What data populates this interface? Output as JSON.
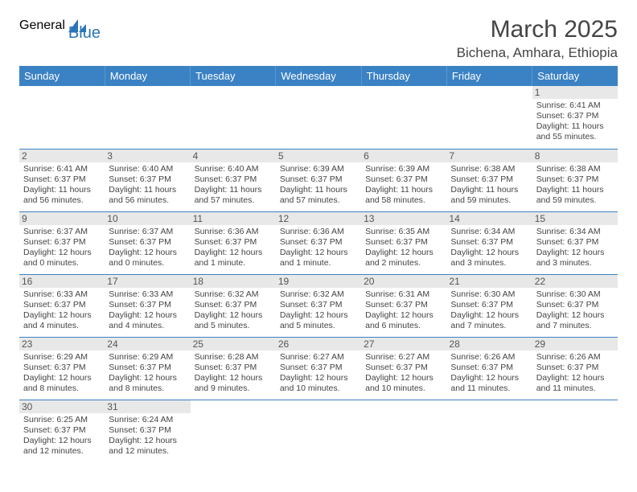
{
  "logo": {
    "part1": "General",
    "part2": "Blue",
    "color1": "#555555",
    "color2": "#2b74b8"
  },
  "title": "March 2025",
  "location": "Bichena, Amhara, Ethiopia",
  "header_bg": "#3b82c4",
  "divider_color": "#3b82c4",
  "daynum_bg": "#e8e8e8",
  "weekdays": [
    "Sunday",
    "Monday",
    "Tuesday",
    "Wednesday",
    "Thursday",
    "Friday",
    "Saturday"
  ],
  "cells": [
    [
      null,
      null,
      null,
      null,
      null,
      null,
      {
        "n": "1",
        "sr": "Sunrise: 6:41 AM",
        "ss": "Sunset: 6:37 PM",
        "dl": "Daylight: 11 hours and 55 minutes."
      }
    ],
    [
      {
        "n": "2",
        "sr": "Sunrise: 6:41 AM",
        "ss": "Sunset: 6:37 PM",
        "dl": "Daylight: 11 hours and 56 minutes."
      },
      {
        "n": "3",
        "sr": "Sunrise: 6:40 AM",
        "ss": "Sunset: 6:37 PM",
        "dl": "Daylight: 11 hours and 56 minutes."
      },
      {
        "n": "4",
        "sr": "Sunrise: 6:40 AM",
        "ss": "Sunset: 6:37 PM",
        "dl": "Daylight: 11 hours and 57 minutes."
      },
      {
        "n": "5",
        "sr": "Sunrise: 6:39 AM",
        "ss": "Sunset: 6:37 PM",
        "dl": "Daylight: 11 hours and 57 minutes."
      },
      {
        "n": "6",
        "sr": "Sunrise: 6:39 AM",
        "ss": "Sunset: 6:37 PM",
        "dl": "Daylight: 11 hours and 58 minutes."
      },
      {
        "n": "7",
        "sr": "Sunrise: 6:38 AM",
        "ss": "Sunset: 6:37 PM",
        "dl": "Daylight: 11 hours and 59 minutes."
      },
      {
        "n": "8",
        "sr": "Sunrise: 6:38 AM",
        "ss": "Sunset: 6:37 PM",
        "dl": "Daylight: 11 hours and 59 minutes."
      }
    ],
    [
      {
        "n": "9",
        "sr": "Sunrise: 6:37 AM",
        "ss": "Sunset: 6:37 PM",
        "dl": "Daylight: 12 hours and 0 minutes."
      },
      {
        "n": "10",
        "sr": "Sunrise: 6:37 AM",
        "ss": "Sunset: 6:37 PM",
        "dl": "Daylight: 12 hours and 0 minutes."
      },
      {
        "n": "11",
        "sr": "Sunrise: 6:36 AM",
        "ss": "Sunset: 6:37 PM",
        "dl": "Daylight: 12 hours and 1 minute."
      },
      {
        "n": "12",
        "sr": "Sunrise: 6:36 AM",
        "ss": "Sunset: 6:37 PM",
        "dl": "Daylight: 12 hours and 1 minute."
      },
      {
        "n": "13",
        "sr": "Sunrise: 6:35 AM",
        "ss": "Sunset: 6:37 PM",
        "dl": "Daylight: 12 hours and 2 minutes."
      },
      {
        "n": "14",
        "sr": "Sunrise: 6:34 AM",
        "ss": "Sunset: 6:37 PM",
        "dl": "Daylight: 12 hours and 3 minutes."
      },
      {
        "n": "15",
        "sr": "Sunrise: 6:34 AM",
        "ss": "Sunset: 6:37 PM",
        "dl": "Daylight: 12 hours and 3 minutes."
      }
    ],
    [
      {
        "n": "16",
        "sr": "Sunrise: 6:33 AM",
        "ss": "Sunset: 6:37 PM",
        "dl": "Daylight: 12 hours and 4 minutes."
      },
      {
        "n": "17",
        "sr": "Sunrise: 6:33 AM",
        "ss": "Sunset: 6:37 PM",
        "dl": "Daylight: 12 hours and 4 minutes."
      },
      {
        "n": "18",
        "sr": "Sunrise: 6:32 AM",
        "ss": "Sunset: 6:37 PM",
        "dl": "Daylight: 12 hours and 5 minutes."
      },
      {
        "n": "19",
        "sr": "Sunrise: 6:32 AM",
        "ss": "Sunset: 6:37 PM",
        "dl": "Daylight: 12 hours and 5 minutes."
      },
      {
        "n": "20",
        "sr": "Sunrise: 6:31 AM",
        "ss": "Sunset: 6:37 PM",
        "dl": "Daylight: 12 hours and 6 minutes."
      },
      {
        "n": "21",
        "sr": "Sunrise: 6:30 AM",
        "ss": "Sunset: 6:37 PM",
        "dl": "Daylight: 12 hours and 7 minutes."
      },
      {
        "n": "22",
        "sr": "Sunrise: 6:30 AM",
        "ss": "Sunset: 6:37 PM",
        "dl": "Daylight: 12 hours and 7 minutes."
      }
    ],
    [
      {
        "n": "23",
        "sr": "Sunrise: 6:29 AM",
        "ss": "Sunset: 6:37 PM",
        "dl": "Daylight: 12 hours and 8 minutes."
      },
      {
        "n": "24",
        "sr": "Sunrise: 6:29 AM",
        "ss": "Sunset: 6:37 PM",
        "dl": "Daylight: 12 hours and 8 minutes."
      },
      {
        "n": "25",
        "sr": "Sunrise: 6:28 AM",
        "ss": "Sunset: 6:37 PM",
        "dl": "Daylight: 12 hours and 9 minutes."
      },
      {
        "n": "26",
        "sr": "Sunrise: 6:27 AM",
        "ss": "Sunset: 6:37 PM",
        "dl": "Daylight: 12 hours and 10 minutes."
      },
      {
        "n": "27",
        "sr": "Sunrise: 6:27 AM",
        "ss": "Sunset: 6:37 PM",
        "dl": "Daylight: 12 hours and 10 minutes."
      },
      {
        "n": "28",
        "sr": "Sunrise: 6:26 AM",
        "ss": "Sunset: 6:37 PM",
        "dl": "Daylight: 12 hours and 11 minutes."
      },
      {
        "n": "29",
        "sr": "Sunrise: 6:26 AM",
        "ss": "Sunset: 6:37 PM",
        "dl": "Daylight: 12 hours and 11 minutes."
      }
    ],
    [
      {
        "n": "30",
        "sr": "Sunrise: 6:25 AM",
        "ss": "Sunset: 6:37 PM",
        "dl": "Daylight: 12 hours and 12 minutes."
      },
      {
        "n": "31",
        "sr": "Sunrise: 6:24 AM",
        "ss": "Sunset: 6:37 PM",
        "dl": "Daylight: 12 hours and 12 minutes."
      },
      null,
      null,
      null,
      null,
      null
    ]
  ]
}
